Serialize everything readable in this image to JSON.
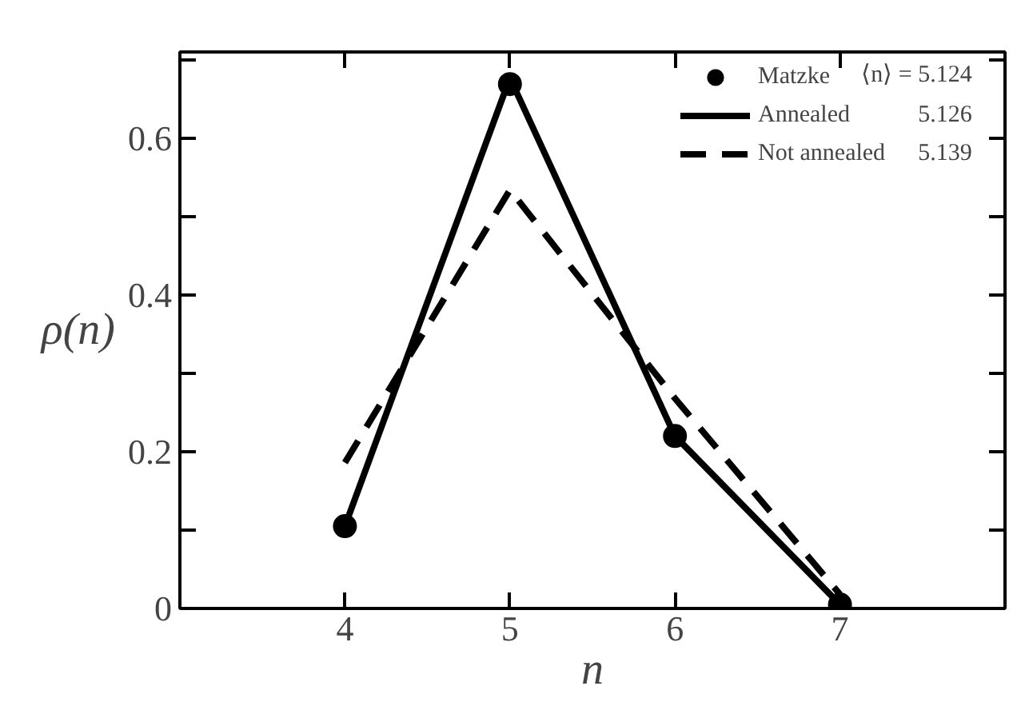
{
  "chart_data": {
    "type": "line",
    "xlabel": "n",
    "ylabel": "ρ(n)",
    "x": [
      4,
      5,
      6,
      7
    ],
    "series": [
      {
        "name": "Matzke",
        "type": "scatter",
        "marker": "circle",
        "color": "#000000",
        "values": [
          0.105,
          0.669,
          0.22,
          0.005
        ]
      },
      {
        "name": "Annealed",
        "line_style": "solid",
        "color": "#000000",
        "values": [
          0.105,
          0.677,
          0.22,
          0.005
        ]
      },
      {
        "name": "Not annealed",
        "line_style": "dashed",
        "color": "#000000",
        "values": [
          0.186,
          0.534,
          0.268,
          0.018
        ]
      }
    ],
    "annotations": [
      "⟨n⟩ = 5.124",
      "5.126",
      "5.139"
    ],
    "xlim": [
      3,
      8
    ],
    "ylim": [
      0,
      0.71
    ],
    "xticks": [
      4,
      5,
      6,
      7
    ],
    "yticks": [
      0,
      {
        "value": 0.1,
        "label": null
      },
      {
        "value": 0.2,
        "label": "0.2"
      },
      {
        "value": 0.3,
        "label": null
      },
      {
        "value": 0.4,
        "label": "0.4"
      },
      {
        "value": 0.5,
        "label": null
      },
      {
        "value": 0.6,
        "label": "0.6"
      },
      {
        "value": 0.7,
        "label": null
      }
    ],
    "grid": false,
    "legend": "top right"
  }
}
